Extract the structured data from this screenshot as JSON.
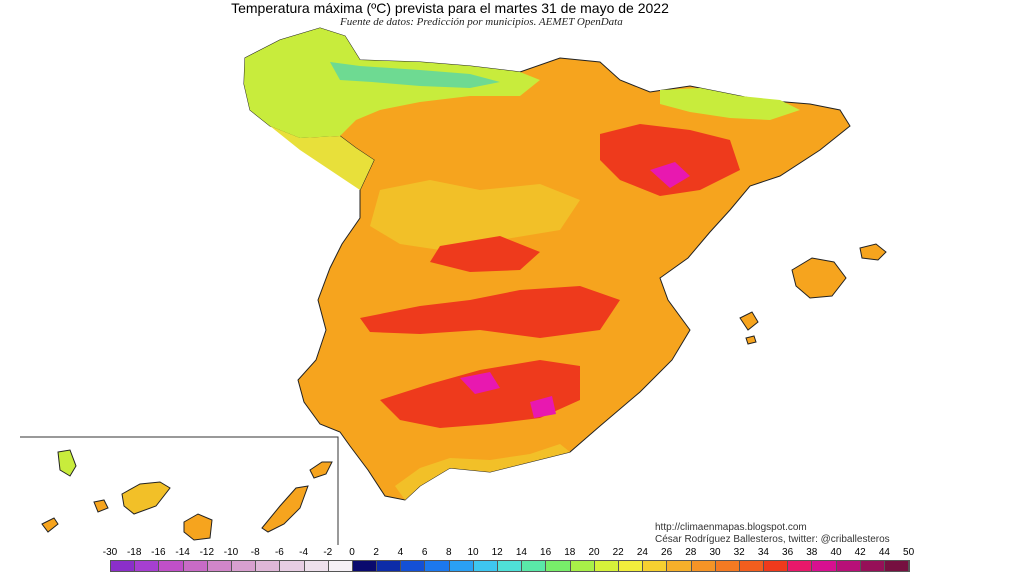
{
  "map": {
    "title": "Temperatura máxima (ºC) prevista para el martes 31 de mayo de 2022",
    "subtitle": "Fuente de datos: Predicción por municipios. AEMET OpenData"
  },
  "credits": {
    "line1": "http://climaenmapas.blogspot.com",
    "line2": "César Rodríguez Ballesteros, twitter: @criballesteros"
  },
  "legend": {
    "ticks": [
      "-30",
      "-18",
      "-16",
      "-14",
      "-12",
      "-10",
      "-8",
      "-6",
      "-4",
      "-2",
      "0",
      "2",
      "4",
      "6",
      "8",
      "10",
      "12",
      "14",
      "16",
      "18",
      "20",
      "22",
      "24",
      "26",
      "28",
      "30",
      "32",
      "34",
      "36",
      "38",
      "40",
      "42",
      "44",
      "50"
    ],
    "colors": [
      "#8b2fc9",
      "#a63fd1",
      "#c050c8",
      "#c86bc6",
      "#d186c9",
      "#d8a0cf",
      "#dfb7d8",
      "#e7cde3",
      "#eee0ec",
      "#f5f0f5",
      "#0a0a6e",
      "#0d2ca8",
      "#1450d6",
      "#1c78ee",
      "#2aa0f4",
      "#3ec6f0",
      "#4fe0d8",
      "#5ae8a8",
      "#78ee6a",
      "#a8f048",
      "#d6f23a",
      "#f2ee3c",
      "#f6d030",
      "#f6b02a",
      "#f59426",
      "#f47a22",
      "#f25e1e",
      "#ef3a1c",
      "#e8186a",
      "#d81090",
      "#b81078",
      "#961058",
      "#761040"
    ]
  },
  "colors": {
    "sea": "#ffffff",
    "cool": "#c8ec3c",
    "mild": "#f2c028",
    "warm": "#f6a41e",
    "hot": "#f08a1e",
    "very_hot": "#ee3a1c",
    "extreme": "#e818b0",
    "cold_mountain": "#58d6a8"
  }
}
